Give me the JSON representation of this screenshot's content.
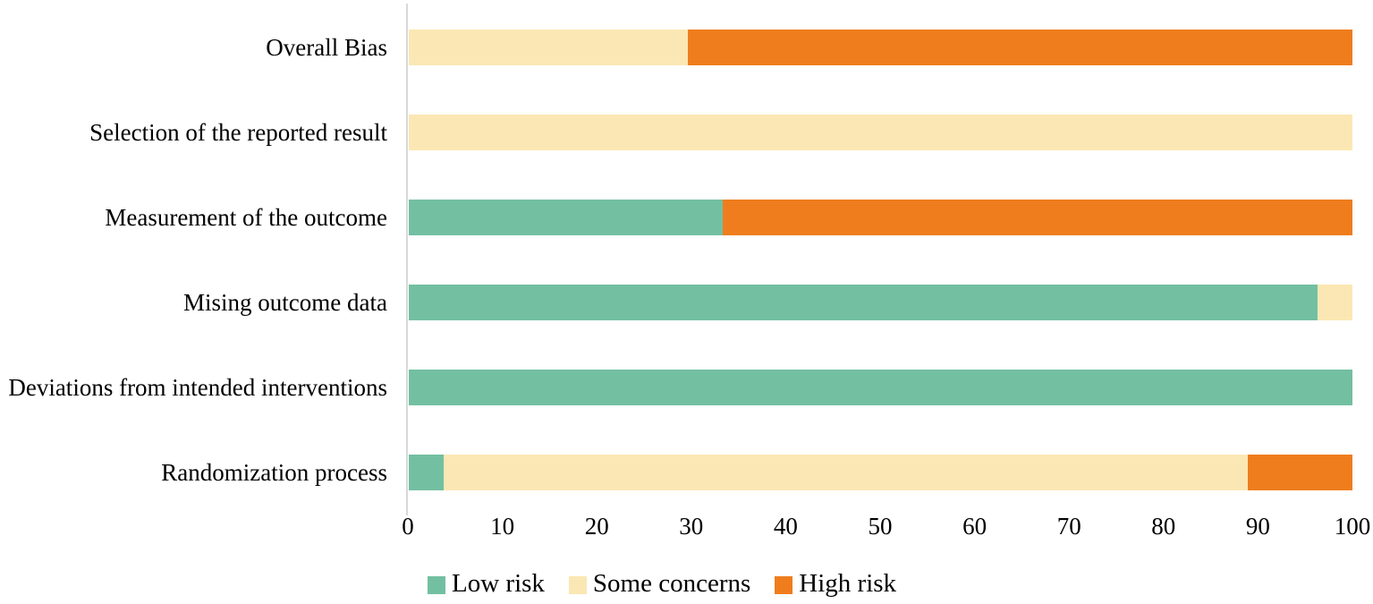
{
  "chart_data": {
    "type": "bar",
    "orientation": "horizontal",
    "stacked": true,
    "title": "",
    "xlabel": "",
    "ylabel": "",
    "xlim": [
      0,
      100
    ],
    "x_ticks": [
      0,
      10,
      20,
      30,
      40,
      50,
      60,
      70,
      80,
      90,
      100
    ],
    "grid": false,
    "legend_position": "bottom",
    "categories_top_to_bottom": [
      "Overall Bias",
      "Selection of the reported result",
      "Measurement of the outcome",
      "Mising outcome data",
      "Deviations from intended interventions",
      "Randomization process"
    ],
    "series": [
      {
        "name": "Low risk",
        "color": "#73BFA2",
        "values": [
          0,
          0,
          33.3,
          96.3,
          100,
          3.7
        ]
      },
      {
        "name": "Some concerns",
        "color": "#FBE7B3",
        "values": [
          29.6,
          100,
          0,
          3.7,
          0,
          85.2
        ]
      },
      {
        "name": "High risk",
        "color": "#EF7D1E",
        "values": [
          70.4,
          0,
          66.7,
          0,
          0,
          11.1
        ]
      }
    ]
  },
  "colors": {
    "axis_line": "#d8d8d8",
    "text": "#000000",
    "background": "#ffffff"
  }
}
